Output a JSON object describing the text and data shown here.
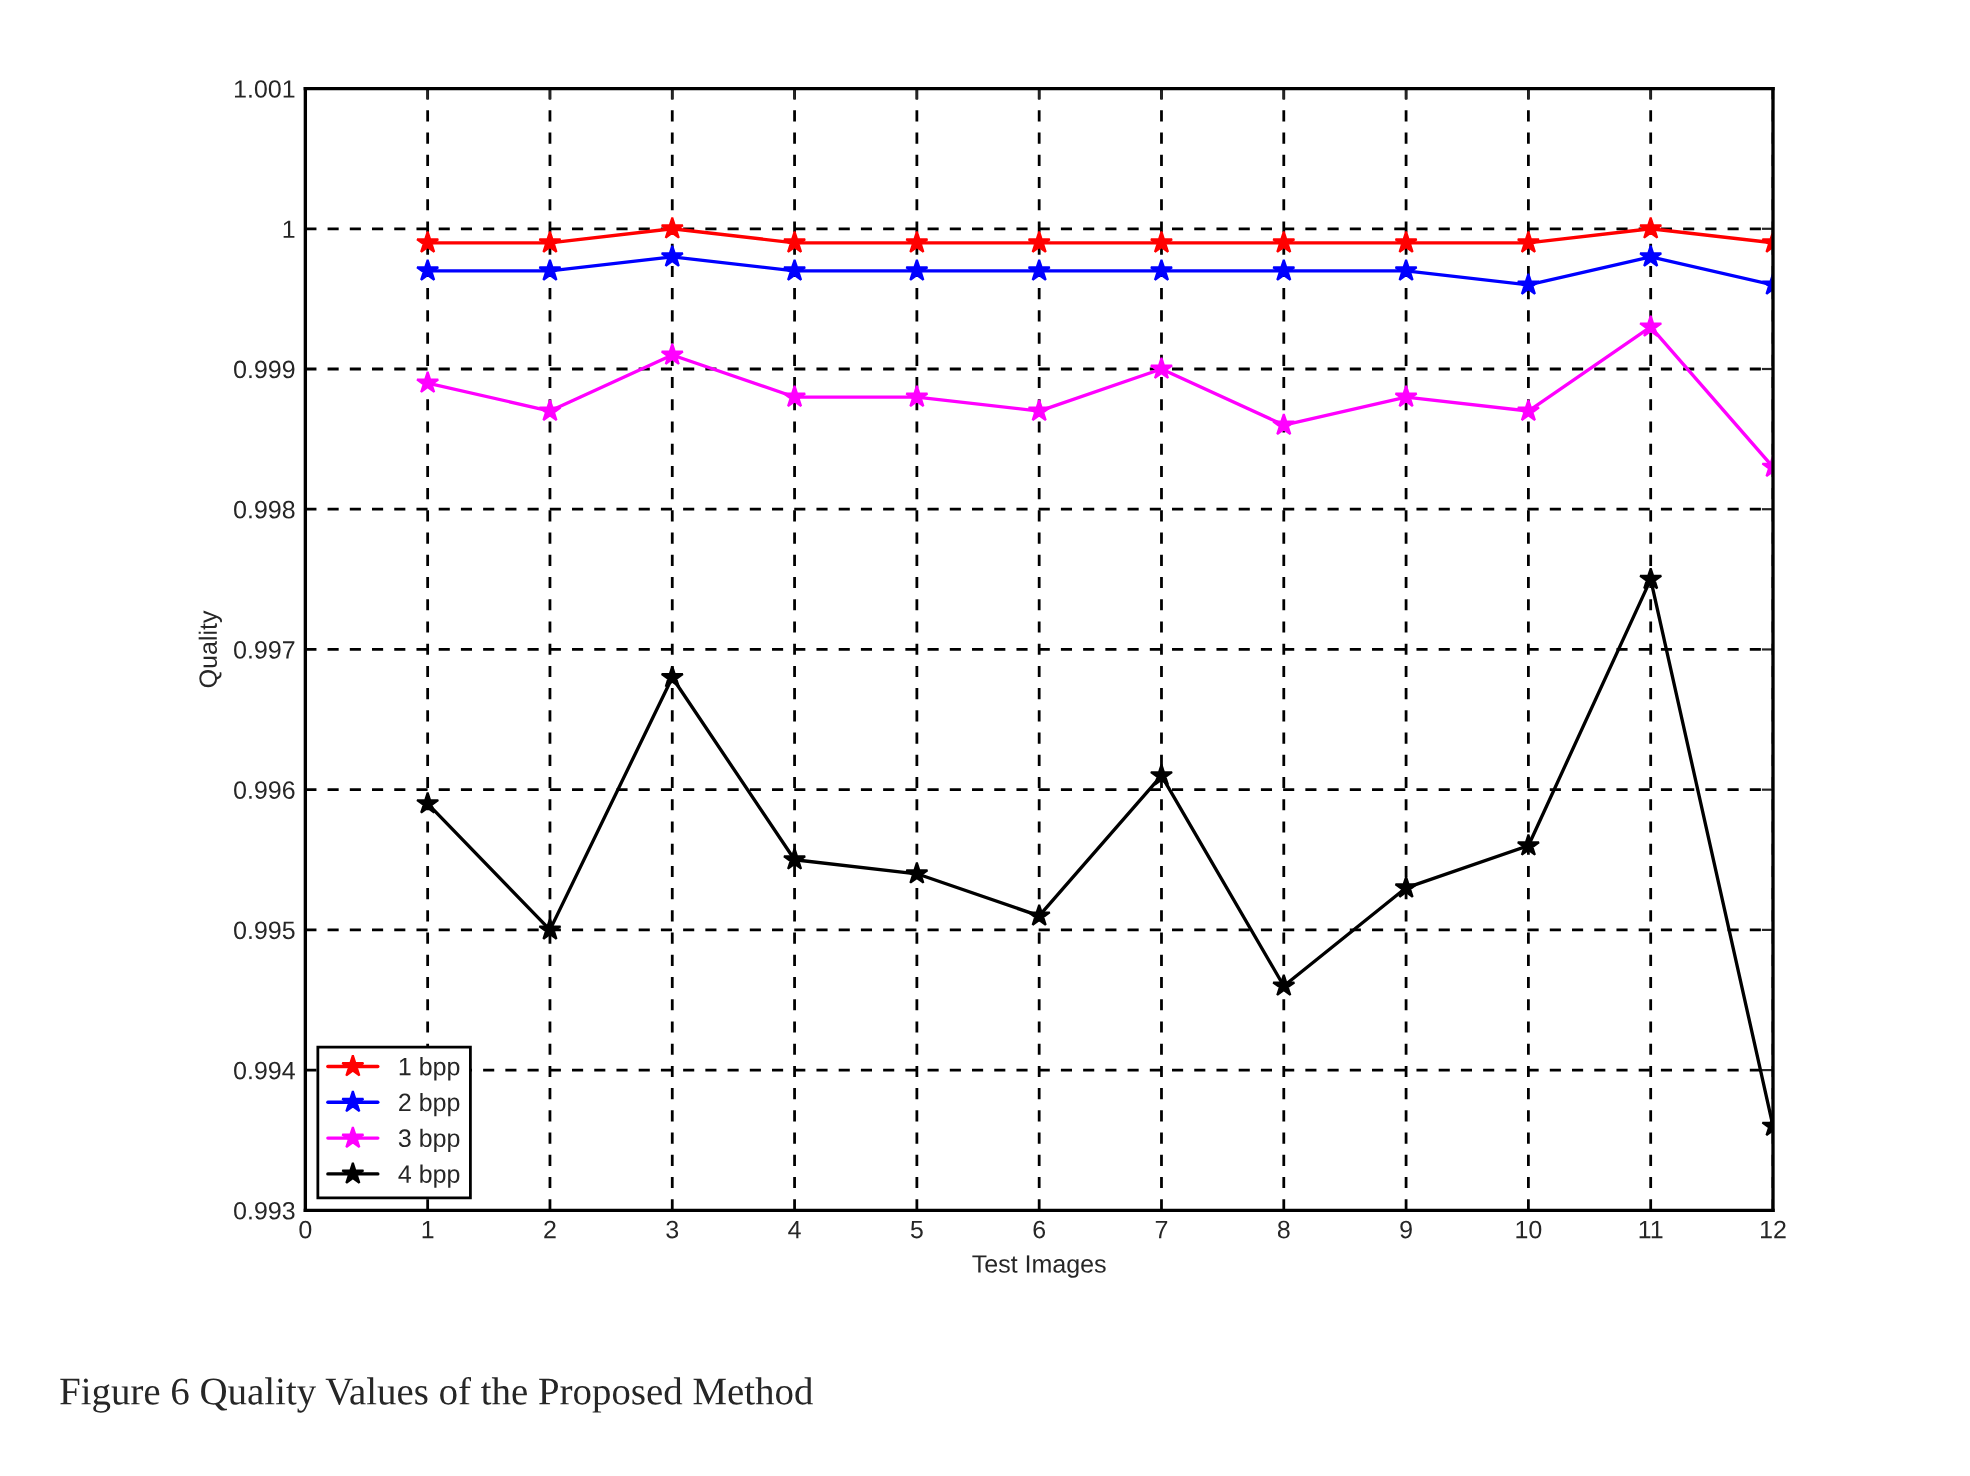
{
  "chart_data": {
    "type": "line",
    "xlabel": "Test Images",
    "ylabel": "Quality",
    "x": [
      1,
      2,
      3,
      4,
      5,
      6,
      7,
      8,
      9,
      10,
      11,
      12
    ],
    "series": [
      {
        "name": "1 bpp",
        "color": "#ff0000",
        "values": [
          0.9999,
          0.9999,
          1.0,
          0.9999,
          0.9999,
          0.9999,
          0.9999,
          0.9999,
          0.9999,
          0.9999,
          1.0,
          0.9999
        ]
      },
      {
        "name": "2 bpp",
        "color": "#0000ff",
        "values": [
          0.9997,
          0.9997,
          0.9998,
          0.9997,
          0.9997,
          0.9997,
          0.9997,
          0.9997,
          0.9997,
          0.9996,
          0.9998,
          0.9996
        ]
      },
      {
        "name": "3 bpp",
        "color": "#ff00ff",
        "values": [
          0.9989,
          0.9987,
          0.9991,
          0.9988,
          0.9988,
          0.9987,
          0.999,
          0.9986,
          0.9988,
          0.9987,
          0.9993,
          0.9983
        ]
      },
      {
        "name": "4 bpp",
        "color": "#000000",
        "values": [
          0.9959,
          0.995,
          0.9968,
          0.9955,
          0.9954,
          0.9951,
          0.9961,
          0.9946,
          0.9953,
          0.9956,
          0.9975,
          0.9936
        ]
      }
    ],
    "xlim": [
      0,
      12
    ],
    "xticks": [
      0,
      1,
      2,
      3,
      4,
      5,
      6,
      7,
      8,
      9,
      10,
      11,
      12
    ],
    "ylim": [
      0.993,
      1.001
    ],
    "yticks": [
      0.993,
      0.994,
      0.995,
      0.996,
      0.997,
      0.998,
      0.999,
      1,
      1.001
    ],
    "grid": true,
    "legend": "bottom left",
    "marker": "star",
    "line_style": "solid",
    "annotations": [
      "Figure 6 Quality Values of the Proposed Method"
    ]
  }
}
